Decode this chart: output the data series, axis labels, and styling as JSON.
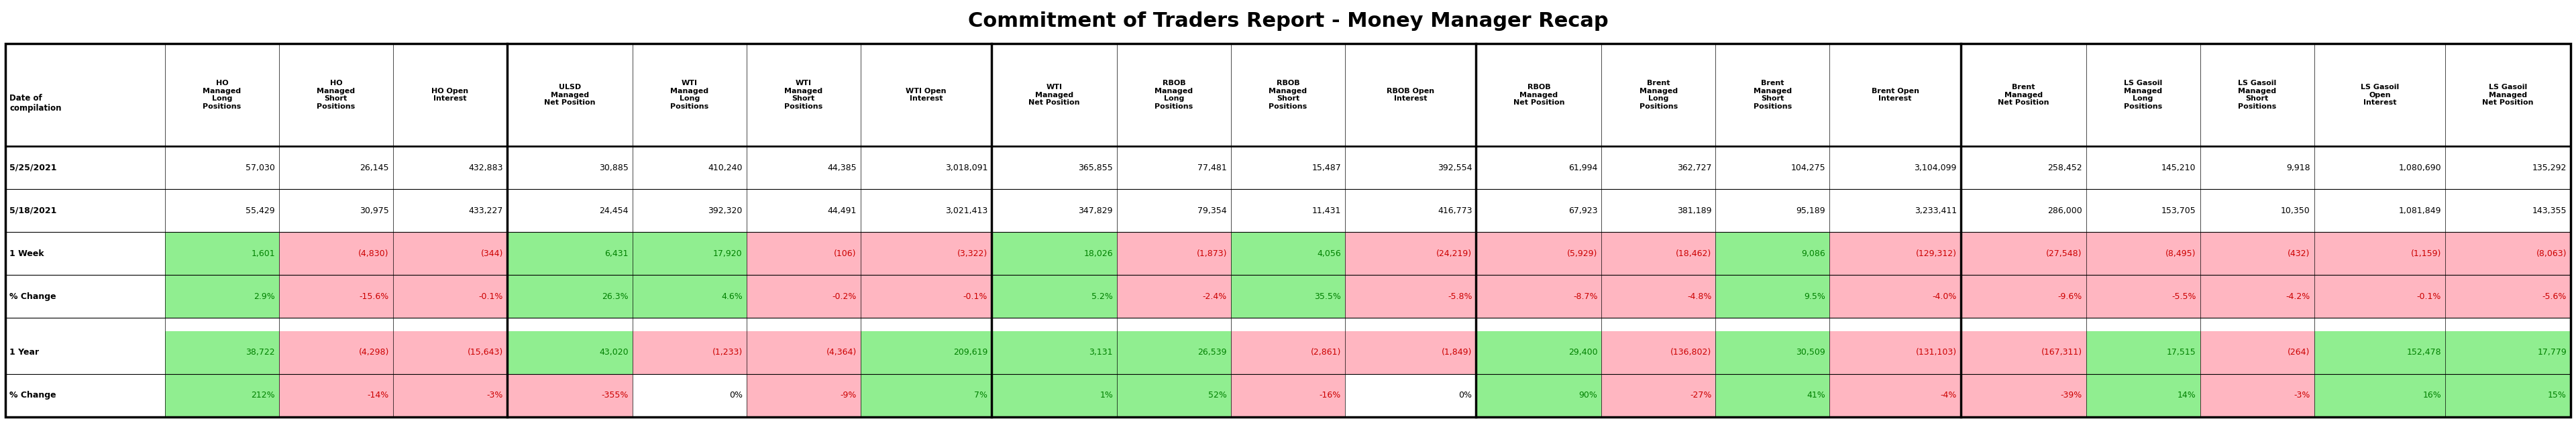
{
  "title": "Commitment of Traders Report - Money Manager Recap",
  "title_fontsize": 22,
  "col_headers": [
    "Date of\ncompilation",
    "HO\nManaged\nLong\nPositions",
    "HO\nManaged\nShort\nPositions",
    "HO Open\nInterest",
    "ULSD\nManaged\nNet Position",
    "WTI\nManaged\nLong\nPositions",
    "WTI\nManaged\nShort\nPositions",
    "WTI Open\nInterest",
    "WTI\nManaged\nNet Position",
    "RBOB\nManaged\nLong\nPositions",
    "RBOB\nManaged\nShort\nPositions",
    "RBOB Open\nInterest",
    "RBOB\nManaged\nNet Position",
    "Brent\nManaged\nLong\nPositions",
    "Brent\nManaged\nShort\nPositions",
    "Brent Open\nInterest",
    "Brent\nManaged\nNet Position",
    "LS Gasoil\nManaged\nLong\nPositions",
    "LS Gasoil\nManaged\nShort\nPositions",
    "LS Gasoil\nOpen\nInterest",
    "LS Gasoil\nManaged\nNet Position"
  ],
  "rows": [
    [
      "5/25/2021",
      "57,030",
      "26,145",
      "432,883",
      "30,885",
      "410,240",
      "44,385",
      "3,018,091",
      "365,855",
      "77,481",
      "15,487",
      "392,554",
      "61,994",
      "362,727",
      "104,275",
      "3,104,099",
      "258,452",
      "145,210",
      "9,918",
      "1,080,690",
      "135,292"
    ],
    [
      "5/18/2021",
      "55,429",
      "30,975",
      "433,227",
      "24,454",
      "392,320",
      "44,491",
      "3,021,413",
      "347,829",
      "79,354",
      "11,431",
      "416,773",
      "67,923",
      "381,189",
      "95,189",
      "3,233,411",
      "286,000",
      "153,705",
      "10,350",
      "1,081,849",
      "143,355"
    ],
    [
      "1 Week",
      "1,601",
      "(4,830)",
      "(344)",
      "6,431",
      "17,920",
      "(106)",
      "(3,322)",
      "18,026",
      "(1,873)",
      "4,056",
      "(24,219)",
      "(5,929)",
      "(18,462)",
      "9,086",
      "(129,312)",
      "(27,548)",
      "(8,495)",
      "(432)",
      "(1,159)",
      "(8,063)"
    ],
    [
      "% Change",
      "2.9%",
      "-15.6%",
      "-0.1%",
      "26.3%",
      "4.6%",
      "-0.2%",
      "-0.1%",
      "5.2%",
      "-2.4%",
      "35.5%",
      "-5.8%",
      "-8.7%",
      "-4.8%",
      "9.5%",
      "-4.0%",
      "-9.6%",
      "-5.5%",
      "-4.2%",
      "-0.1%",
      "-5.6%"
    ],
    [
      "1 Year",
      "38,722",
      "(4,298)",
      "(15,643)",
      "43,020",
      "(1,233)",
      "(4,364)",
      "209,619",
      "3,131",
      "26,539",
      "(2,861)",
      "(1,849)",
      "29,400",
      "(136,802)",
      "30,509",
      "(131,103)",
      "(167,311)",
      "17,515",
      "(264)",
      "152,478",
      "17,779"
    ],
    [
      "% Change",
      "212%",
      "-14%",
      "-3%",
      "-355%",
      "0%",
      "-9%",
      "7%",
      "1%",
      "52%",
      "-16%",
      "0%",
      "90%",
      "-27%",
      "41%",
      "-4%",
      "-39%",
      "14%",
      "-3%",
      "16%",
      "15%"
    ]
  ],
  "cell_colors": {
    "row2": [
      "#ffffff",
      "#90EE90",
      "#FFB6C1",
      "#FFB6C1",
      "#90EE90",
      "#90EE90",
      "#FFB6C1",
      "#FFB6C1",
      "#90EE90",
      "#FFB6C1",
      "#90EE90",
      "#FFB6C1",
      "#FFB6C1",
      "#FFB6C1",
      "#90EE90",
      "#FFB6C1",
      "#FFB6C1",
      "#FFB6C1",
      "#FFB6C1",
      "#FFB6C1",
      "#FFB6C1"
    ],
    "row3": [
      "#ffffff",
      "#90EE90",
      "#FFB6C1",
      "#FFB6C1",
      "#90EE90",
      "#90EE90",
      "#FFB6C1",
      "#FFB6C1",
      "#90EE90",
      "#FFB6C1",
      "#90EE90",
      "#FFB6C1",
      "#FFB6C1",
      "#FFB6C1",
      "#90EE90",
      "#FFB6C1",
      "#FFB6C1",
      "#FFB6C1",
      "#FFB6C1",
      "#FFB6C1",
      "#FFB6C1"
    ],
    "row4": [
      "#ffffff",
      "#90EE90",
      "#FFB6C1",
      "#FFB6C1",
      "#90EE90",
      "#FFB6C1",
      "#FFB6C1",
      "#90EE90",
      "#90EE90",
      "#90EE90",
      "#FFB6C1",
      "#FFB6C1",
      "#90EE90",
      "#FFB6C1",
      "#90EE90",
      "#FFB6C1",
      "#FFB6C1",
      "#90EE90",
      "#FFB6C1",
      "#90EE90",
      "#90EE90"
    ],
    "row5": [
      "#ffffff",
      "#90EE90",
      "#FFB6C1",
      "#FFB6C1",
      "#FFB6C1",
      "#ffffff",
      "#FFB6C1",
      "#90EE90",
      "#90EE90",
      "#90EE90",
      "#FFB6C1",
      "#ffffff",
      "#90EE90",
      "#FFB6C1",
      "#90EE90",
      "#FFB6C1",
      "#FFB6C1",
      "#90EE90",
      "#FFB6C1",
      "#90EE90",
      "#90EE90"
    ]
  },
  "text_color_positive": "#008000",
  "text_color_negative": "#CC0000",
  "text_color_neutral": "#000000",
  "group_separators": [
    4,
    8,
    12,
    16
  ],
  "col_widths": [
    1.4,
    1.0,
    1.0,
    1.0,
    1.1,
    1.0,
    1.0,
    1.15,
    1.1,
    1.0,
    1.0,
    1.15,
    1.1,
    1.0,
    1.0,
    1.15,
    1.1,
    1.0,
    1.0,
    1.15,
    1.1
  ]
}
